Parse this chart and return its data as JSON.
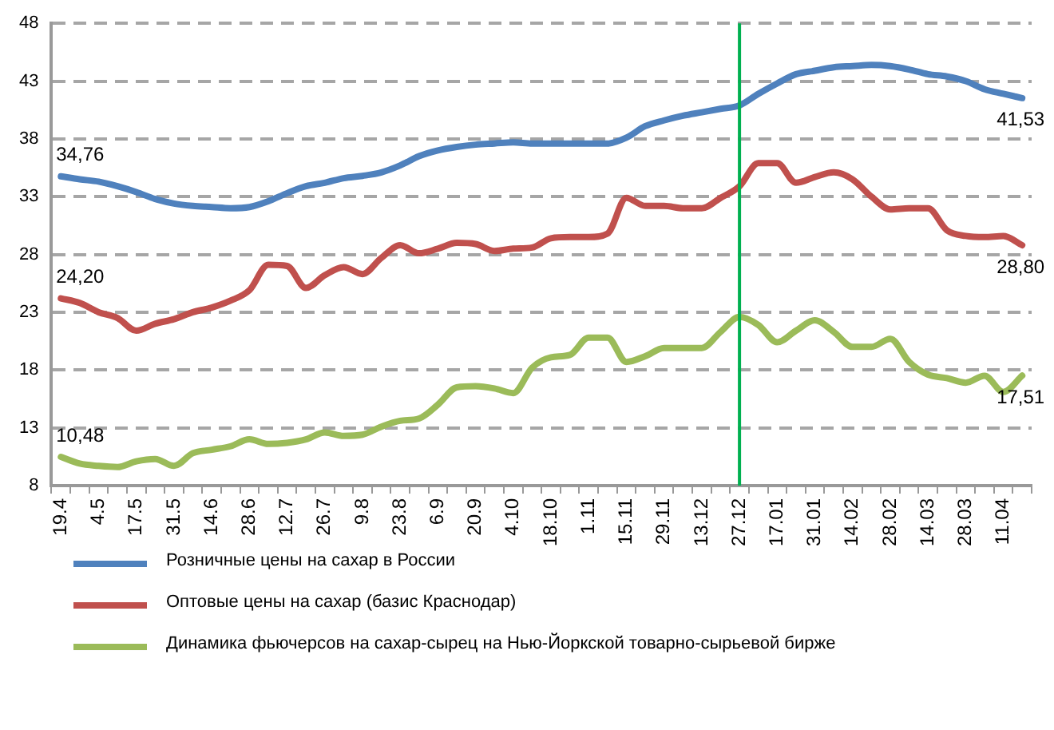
{
  "chart_data": {
    "type": "line",
    "categories": [
      "19.4",
      null,
      "4.5",
      null,
      "17.5",
      null,
      "31.5",
      null,
      "14.6",
      null,
      "28.6",
      null,
      "12.7",
      null,
      "26.7",
      null,
      "9.8",
      null,
      "23.8",
      null,
      "6.9",
      null,
      "20.9",
      null,
      "4.10",
      null,
      "18.10",
      null,
      "1.11",
      null,
      "15.11",
      null,
      "29.11",
      null,
      "13.12",
      null,
      "27.12",
      null,
      "17.01",
      null,
      "31.01",
      null,
      "14.02",
      null,
      "28.02",
      null,
      "14.03",
      null,
      "28.03",
      null,
      "11.04",
      null
    ],
    "series": [
      {
        "name": "Розничные цены на сахар в России",
        "color": "#4f81bd",
        "values": [
          34.76,
          34.5,
          34.3,
          33.9,
          33.4,
          32.8,
          32.4,
          32.2,
          32.1,
          32.0,
          32.1,
          32.6,
          33.3,
          33.9,
          34.2,
          34.6,
          34.8,
          35.1,
          35.7,
          36.5,
          37.0,
          37.3,
          37.5,
          37.6,
          37.7,
          37.6,
          37.6,
          37.6,
          37.6,
          37.6,
          38.1,
          39.1,
          39.6,
          40.0,
          40.3,
          40.6,
          40.9,
          41.9,
          42.8,
          43.6,
          43.9,
          44.2,
          44.3,
          44.4,
          44.3,
          44.0,
          43.6,
          43.4,
          43.0,
          42.3,
          41.9,
          41.53
        ],
        "value_labels": [
          "34,76",
          null,
          null,
          null,
          null,
          null,
          null,
          null,
          null,
          null,
          null,
          null,
          null,
          null,
          null,
          null,
          null,
          null,
          null,
          null,
          null,
          null,
          null,
          null,
          null,
          null,
          null,
          null,
          null,
          null,
          null,
          null,
          null,
          null,
          null,
          null,
          null,
          null,
          null,
          null,
          null,
          null,
          null,
          null,
          null,
          null,
          null,
          null,
          null,
          null,
          null,
          "41,53"
        ]
      },
      {
        "name": "Оптовые цены на сахар (базис Краснодар)",
        "color": "#c0504d",
        "values": [
          24.2,
          23.8,
          23.0,
          22.5,
          21.4,
          22.0,
          22.4,
          23.0,
          23.4,
          24.0,
          24.9,
          27.1,
          27.0,
          25.1,
          26.2,
          26.9,
          26.3,
          27.7,
          28.8,
          28.1,
          28.5,
          29.0,
          28.9,
          28.3,
          28.5,
          28.6,
          29.4,
          29.5,
          29.5,
          29.8,
          32.9,
          32.2,
          32.2,
          32.0,
          32.0,
          32.9,
          33.9,
          35.9,
          35.9,
          34.2,
          34.7,
          35.1,
          34.5,
          33.0,
          31.9,
          32.0,
          32.0,
          30.1,
          29.6,
          29.5,
          29.6,
          28.8
        ],
        "value_labels": [
          "24,20",
          null,
          null,
          null,
          null,
          null,
          null,
          null,
          null,
          null,
          null,
          null,
          null,
          null,
          null,
          null,
          null,
          null,
          null,
          null,
          null,
          null,
          null,
          null,
          null,
          null,
          null,
          null,
          null,
          null,
          null,
          null,
          null,
          null,
          null,
          null,
          null,
          null,
          null,
          null,
          null,
          null,
          null,
          null,
          null,
          null,
          null,
          null,
          null,
          null,
          null,
          "28,80"
        ]
      },
      {
        "name": "Динамика фьючерсов на сахар-сырец на Нью-Йоркской товарно-сырьевой бирже",
        "color": "#9bbb59",
        "values": [
          10.48,
          9.9,
          9.7,
          9.6,
          10.1,
          10.3,
          9.7,
          10.8,
          11.1,
          11.4,
          12.0,
          11.6,
          11.7,
          12.0,
          12.6,
          12.3,
          12.4,
          13.1,
          13.6,
          13.8,
          15.0,
          16.5,
          16.6,
          16.4,
          16.0,
          18.2,
          19.1,
          19.3,
          20.8,
          20.8,
          18.7,
          19.2,
          19.9,
          19.9,
          19.9,
          21.3,
          22.6,
          21.9,
          20.4,
          21.4,
          22.3,
          21.3,
          20.0,
          20.0,
          20.7,
          18.7,
          17.6,
          17.3,
          16.9,
          17.5,
          16.1,
          17.51
        ],
        "value_labels": [
          "10,48",
          null,
          null,
          null,
          null,
          null,
          null,
          null,
          null,
          null,
          null,
          null,
          null,
          null,
          null,
          null,
          null,
          null,
          null,
          null,
          null,
          null,
          null,
          null,
          null,
          null,
          null,
          null,
          null,
          null,
          null,
          null,
          null,
          null,
          null,
          null,
          null,
          null,
          null,
          null,
          null,
          null,
          null,
          null,
          null,
          null,
          null,
          null,
          null,
          null,
          null,
          "17,51"
        ]
      }
    ],
    "ylim": [
      8,
      48
    ],
    "yticks": [
      8,
      13,
      18,
      23,
      28,
      33,
      38,
      43,
      48
    ],
    "grid": "y",
    "legend": "bottom",
    "marker": "none",
    "line_style": "solid",
    "ref_lines": [
      {
        "axis": "x",
        "value": "27.12",
        "color": "#00b050"
      }
    ]
  }
}
